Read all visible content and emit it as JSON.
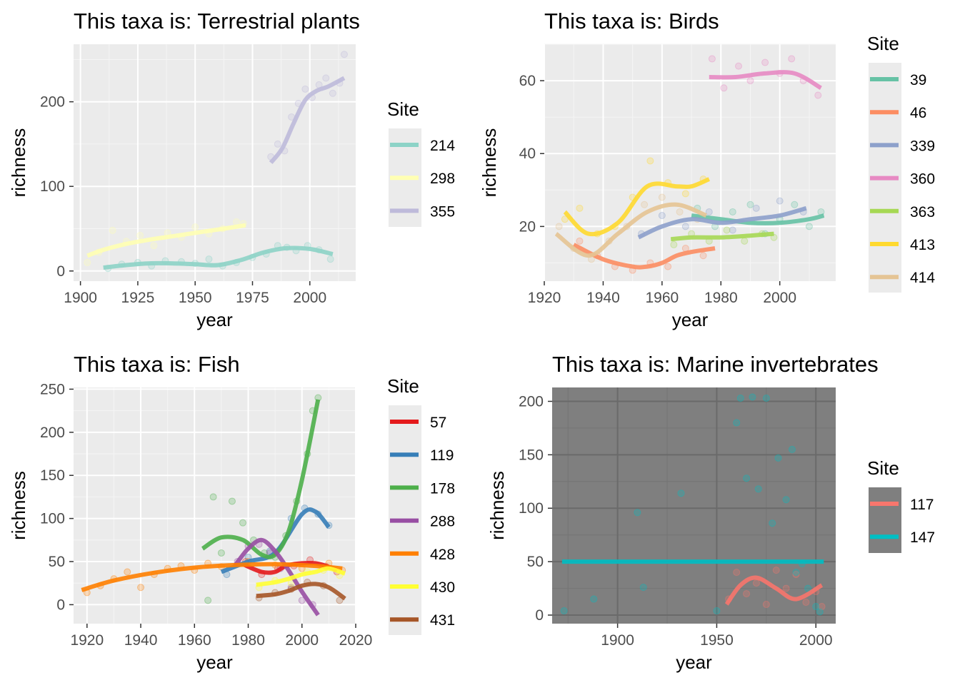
{
  "chart_data": [
    {
      "type": "line",
      "title": "This taxa is: Terrestrial plants",
      "xlabel": "year",
      "ylabel": "richness",
      "xlim": [
        1897,
        2020
      ],
      "ylim": [
        -12,
        268
      ],
      "xticks": [
        1900,
        1925,
        1950,
        1975,
        2000
      ],
      "yticks": [
        0,
        100,
        200
      ],
      "panel_bg": "#ebebeb",
      "legend": {
        "title": "Site",
        "position": "right"
      },
      "series": [
        {
          "name": "214",
          "color": "#8dd3c7",
          "x": [
            1910,
            1920,
            1930,
            1940,
            1950,
            1960,
            1970,
            1980,
            1990,
            2000,
            2010
          ],
          "y": [
            4,
            7,
            9,
            9,
            8,
            7,
            13,
            22,
            27,
            26,
            20
          ],
          "points": {
            "x": [
              1912,
              1918,
              1925,
              1931,
              1937,
              1944,
              1950,
              1956,
              1962,
              1968,
              1975,
              1981,
              1986,
              1990,
              1994,
              1999,
              2004,
              2009
            ],
            "y": [
              3,
              8,
              10,
              6,
              12,
              11,
              9,
              14,
              6,
              10,
              16,
              20,
              30,
              28,
              24,
              30,
              25,
              14
            ]
          }
        },
        {
          "name": "298",
          "color": "#ffffb3",
          "x": [
            1903,
            1910,
            1920,
            1930,
            1940,
            1950,
            1960,
            1972
          ],
          "y": [
            18,
            25,
            32,
            37,
            41,
            45,
            49,
            54
          ],
          "points": {
            "x": [
              1903,
              1908,
              1914,
              1920,
              1926,
              1932,
              1938,
              1944,
              1950,
              1956,
              1962,
              1968,
              1971
            ],
            "y": [
              10,
              22,
              48,
              35,
              42,
              30,
              45,
              40,
              52,
              44,
              50,
              58,
              56
            ]
          }
        },
        {
          "name": "355",
          "color": "#bebada",
          "x": [
            1983,
            1988,
            1993,
            1998,
            2003,
            2008,
            2015
          ],
          "y": [
            128,
            145,
            175,
            202,
            213,
            218,
            228
          ],
          "points": {
            "x": [
              1983,
              1986,
              1989,
              1992,
              1995,
              1998,
              2001,
              2004,
              2007,
              2010,
              2013,
              2015
            ],
            "y": [
              135,
              150,
              142,
              182,
              198,
              215,
              205,
              220,
              228,
              210,
              222,
              256
            ]
          }
        }
      ]
    },
    {
      "type": "line",
      "title": "This taxa is: Birds",
      "xlabel": "year",
      "ylabel": "richness",
      "xlim": [
        1920,
        2019
      ],
      "ylim": [
        5,
        70
      ],
      "xticks": [
        1920,
        1940,
        1960,
        1980,
        2000
      ],
      "yticks": [
        20,
        40,
        60
      ],
      "panel_bg": "#ebebeb",
      "legend": {
        "title": "Site",
        "position": "right"
      },
      "series": [
        {
          "name": "39",
          "color": "#66c2a5",
          "x": [
            1970,
            1980,
            1990,
            2000,
            2010,
            2015
          ],
          "y": [
            23,
            22,
            21,
            21,
            22,
            23
          ],
          "points": {
            "x": [
              1972,
              1978,
              1984,
              1990,
              1995,
              2000,
              2005,
              2010,
              2014
            ],
            "y": [
              25,
              20,
              24,
              26,
              18,
              22,
              26,
              20,
              24
            ]
          }
        },
        {
          "name": "46",
          "color": "#fc8d62",
          "x": [
            1930,
            1940,
            1950,
            1955,
            1960,
            1965,
            1970,
            1978
          ],
          "y": [
            15,
            11,
            9,
            9,
            10,
            12,
            13,
            14
          ],
          "points": {
            "x": [
              1932,
              1938,
              1944,
              1950,
              1956,
              1962,
              1968,
              1974
            ],
            "y": [
              16,
              12,
              9,
              8,
              10,
              9,
              14,
              12
            ]
          }
        },
        {
          "name": "339",
          "color": "#8da0cb",
          "x": [
            1952,
            1960,
            1970,
            1980,
            1990,
            2000,
            2009
          ],
          "y": [
            17,
            20,
            22,
            21,
            22,
            23,
            25
          ],
          "points": {
            "x": [
              1953,
              1960,
              1968,
              1976,
              1984,
              1992,
              2000,
              2008
            ],
            "y": [
              18,
              23,
              20,
              24,
              19,
              25,
              27,
              24
            ]
          }
        },
        {
          "name": "360",
          "color": "#e78ac3",
          "x": [
            1976,
            1985,
            1995,
            2005,
            2014
          ],
          "y": [
            61,
            61,
            62,
            62,
            58
          ],
          "points": {
            "x": [
              1977,
              1981,
              1986,
              1990,
              1995,
              2000,
              2004,
              2008,
              2013
            ],
            "y": [
              66,
              58,
              64,
              60,
              65,
              62,
              66,
              60,
              56
            ]
          }
        },
        {
          "name": "363",
          "color": "#a6d854",
          "x": [
            1963,
            1970,
            1980,
            1990,
            1998
          ],
          "y": [
            16.5,
            17,
            17,
            17.5,
            18
          ],
          "points": {
            "x": [
              1964,
              1970,
              1976,
              1982,
              1988,
              1994,
              1998
            ],
            "y": [
              15,
              18,
              16,
              19,
              16,
              18,
              17
            ]
          }
        },
        {
          "name": "413",
          "color": "#ffd92f",
          "x": [
            1927,
            1935,
            1945,
            1955,
            1965,
            1970,
            1976
          ],
          "y": [
            24,
            18,
            21,
            31,
            31,
            31,
            33
          ],
          "points": {
            "x": [
              1927,
              1932,
              1938,
              1944,
              1950,
              1956,
              1962,
              1968,
              1974
            ],
            "y": [
              22,
              25,
              18,
              20,
              28,
              38,
              32,
              29,
              33
            ]
          }
        },
        {
          "name": "414",
          "color": "#e5c494",
          "x": [
            1924,
            1935,
            1945,
            1955,
            1965,
            1975
          ],
          "y": [
            18,
            12,
            18,
            24,
            26,
            23
          ],
          "points": {
            "x": [
              1925,
              1930,
              1936,
              1942,
              1948,
              1954,
              1960,
              1966,
              1972
            ],
            "y": [
              20,
              14,
              11,
              16,
              20,
              26,
              28,
              24,
              22
            ]
          }
        }
      ]
    },
    {
      "type": "line",
      "title": "This taxa is: Fish",
      "xlabel": "year",
      "ylabel": "richness",
      "xlim": [
        1915,
        2020
      ],
      "ylim": [
        -22,
        252
      ],
      "xticks": [
        1920,
        1940,
        1960,
        1980,
        2000,
        2020
      ],
      "yticks": [
        0,
        50,
        100,
        150,
        200,
        250
      ],
      "panel_bg": "#ebebeb",
      "legend": {
        "title": "Site",
        "position": "right"
      },
      "series": [
        {
          "name": "57",
          "color": "#e41a1c",
          "x": [
            1978,
            1985,
            1990,
            1995,
            2005,
            2013
          ],
          "y": [
            47,
            38,
            38,
            46,
            48,
            40
          ],
          "points": {
            "x": [
              1979,
              1985,
              1991,
              1997,
              2003,
              2009,
              2013
            ],
            "y": [
              50,
              35,
              42,
              45,
              52,
              44,
              38
            ]
          }
        },
        {
          "name": "119",
          "color": "#377eb8",
          "x": [
            1970,
            1980,
            1990,
            2000,
            2005,
            2010
          ],
          "y": [
            38,
            50,
            60,
            105,
            108,
            90
          ],
          "points": {
            "x": [
              1972,
              1980,
              1988,
              1996,
              2001,
              2006,
              2010
            ],
            "y": [
              35,
              55,
              62,
              100,
              112,
              105,
              92
            ]
          }
        },
        {
          "name": "178",
          "color": "#4daf4a",
          "x": [
            1963,
            1970,
            1978,
            1985,
            1990,
            1995,
            2000,
            2006
          ],
          "y": [
            65,
            78,
            75,
            58,
            58,
            85,
            145,
            238
          ],
          "points": {
            "x": [
              1965,
              1967,
              1970,
              1974,
              1978,
              1982,
              1986,
              1990,
              1994,
              1998,
              2002,
              2004,
              2006
            ],
            "y": [
              5,
              125,
              60,
              120,
              95,
              75,
              60,
              55,
              80,
              120,
              175,
              225,
              240
            ]
          }
        },
        {
          "name": "288",
          "color": "#984ea3",
          "x": [
            1975,
            1980,
            1985,
            1990,
            1995,
            2000,
            2006
          ],
          "y": [
            45,
            65,
            75,
            62,
            40,
            15,
            -12
          ],
          "points": {
            "x": [
              1976,
              1980,
              1984,
              1988,
              1992,
              1996,
              2000,
              2004
            ],
            "y": [
              50,
              68,
              70,
              60,
              42,
              20,
              5,
              0
            ]
          }
        },
        {
          "name": "428",
          "color": "#ff7f00",
          "x": [
            1918,
            1930,
            1945,
            1960,
            1975,
            1990,
            2005,
            2015
          ],
          "y": [
            17,
            28,
            37,
            43,
            46,
            47,
            45,
            42
          ],
          "points": {
            "x": [
              1920,
              1925,
              1930,
              1935,
              1940,
              1945,
              1950,
              1955,
              1960,
              1965,
              1970,
              1980,
              1990,
              2000,
              2010,
              2015
            ],
            "y": [
              14,
              22,
              30,
              38,
              20,
              35,
              42,
              45,
              40,
              48,
              44,
              50,
              46,
              42,
              48,
              40
            ]
          }
        },
        {
          "name": "430",
          "color": "#ffff33",
          "x": [
            1983,
            1990,
            1995,
            2000,
            2005,
            2010,
            2016
          ],
          "y": [
            23,
            26,
            30,
            35,
            38,
            42,
            36
          ],
          "points": {
            "x": [
              1984,
              1990,
              1996,
              2002,
              2008,
              2014
            ],
            "y": [
              20,
              28,
              25,
              38,
              40,
              34
            ]
          }
        },
        {
          "name": "431",
          "color": "#a65628",
          "x": [
            1983,
            1990,
            1995,
            2000,
            2005,
            2010,
            2016
          ],
          "y": [
            10,
            12,
            16,
            22,
            24,
            20,
            7
          ],
          "points": {
            "x": [
              1984,
              1990,
              1996,
              2002,
              2008,
              2014
            ],
            "y": [
              8,
              14,
              18,
              26,
              22,
              5
            ]
          }
        }
      ]
    },
    {
      "type": "line",
      "title": "This taxa is: Marine invertebrates",
      "xlabel": "year",
      "ylabel": "richness",
      "xlim": [
        1867,
        2010
      ],
      "ylim": [
        -8,
        213
      ],
      "xticks": [
        1900,
        1950,
        2000
      ],
      "yticks": [
        0,
        50,
        100,
        150,
        200
      ],
      "panel_bg": "#7f7f7f",
      "legend": {
        "title": "Site",
        "position": "right"
      },
      "series": [
        {
          "name": "117",
          "color": "#f8766d",
          "x": [
            1955,
            1962,
            1970,
            1980,
            1990,
            2003
          ],
          "y": [
            10,
            28,
            35,
            25,
            15,
            28
          ],
          "points": {
            "x": [
              1956,
              1960,
              1965,
              1970,
              1975,
              1980,
              1985,
              1990,
              1995,
              2000,
              2003
            ],
            "y": [
              15,
              40,
              20,
              30,
              10,
              42,
              25,
              38,
              12,
              22,
              8
            ]
          }
        },
        {
          "name": "147",
          "color": "#00bfc4",
          "x": [
            1872,
            1900,
            1950,
            1980,
            2004
          ],
          "y": [
            50,
            50,
            50,
            50,
            50
          ],
          "points": {
            "x": [
              1873,
              1888,
              1910,
              1913,
              1932,
              1950,
              1960,
              1962,
              1965,
              1968,
              1971,
              1975,
              1978,
              1981,
              1985,
              1988,
              1990,
              1993,
              1996,
              2000,
              2002
            ],
            "y": [
              4,
              15,
              96,
              26,
              114,
              4,
              180,
              203,
              128,
              204,
              118,
              203,
              86,
              147,
              108,
              155,
              40,
              48,
              25,
              8,
              3
            ]
          }
        }
      ]
    }
  ]
}
